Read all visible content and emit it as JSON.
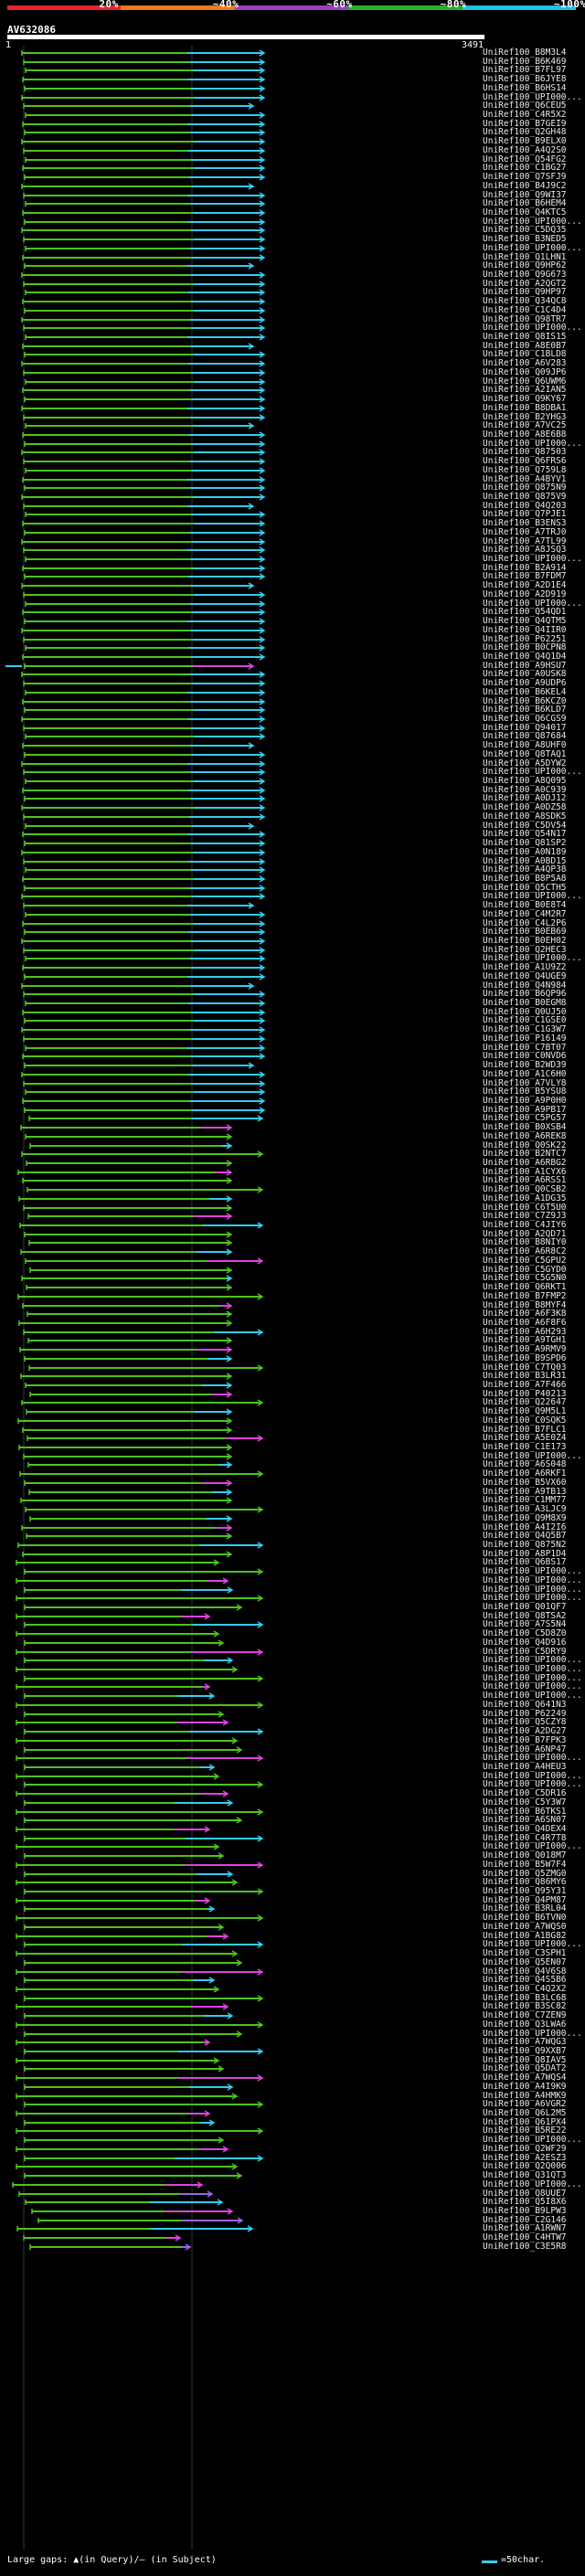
{
  "scale": {
    "ticks": [
      "20%",
      "~40%",
      "~60%",
      "~80%",
      "~100%"
    ],
    "colors": [
      "#e8242c",
      "#ee7a1e",
      "#9a3fbf",
      "#26b02c",
      "#1fc0e0"
    ]
  },
  "query": {
    "title": "AV632086",
    "start": "1",
    "end": "3491"
  },
  "colors": {
    "green": "#4ec21f",
    "cyan": "#33ccee",
    "magenta": "#dd44dd",
    "violet": "#9966dd",
    "gridline": "#2a3a3a"
  },
  "labels": [
    "UniRef100_B8M3L4",
    "UniRef100_B6K469",
    "UniRef100_B7FL97",
    "UniRef100_B6JYE8",
    "UniRef100_B6HS14",
    "UniRef100_UPI000...",
    "UniRef100_Q6CEU5",
    "UniRef100_C4R5X2",
    "UniRef100_B7GEI9",
    "UniRef100_Q2GH48",
    "UniRef100_B9ELX0",
    "UniRef100_A4Q2S0",
    "UniRef100_Q54FG2",
    "UniRef100_C1BG27",
    "UniRef100_Q7SFJ9",
    "UniRef100_B4J9C2",
    "UniRef100_Q9WI37",
    "UniRef100_B6HEM4",
    "UniRef100_Q4KTC5",
    "UniRef100_UPI000...",
    "UniRef100_C5DQ35",
    "UniRef100_B3NED5",
    "UniRef100_UPI000...",
    "UniRef100_Q1LHN1",
    "UniRef100_Q9HP62",
    "UniRef100_Q9G673",
    "UniRef100_A2QGT2",
    "UniRef100_Q9HP97",
    "UniRef100_Q34QC8",
    "UniRef100_C1C4D4",
    "UniRef100_Q98TR7",
    "UniRef100_UPI000...",
    "UniRef100_Q8IS15",
    "UniRef100_A8E0B7",
    "UniRef100_C1BLD8",
    "UniRef100_A6V283",
    "UniRef100_Q09JP6",
    "UniRef100_Q6UWM6",
    "UniRef100_A2IAN5",
    "UniRef100_Q9KY67",
    "UniRef100_B8DBA1",
    "UniRef100_B2YHG3",
    "UniRef100_A7VC25",
    "UniRef100_A8E6B8",
    "UniRef100_UPI000...",
    "UniRef100_Q87503",
    "UniRef100_Q6FRS6",
    "UniRef100_Q759L8",
    "UniRef100_A4BYV1",
    "UniRef100_Q875N9",
    "UniRef100_Q875V9",
    "UniRef100_Q4Q203",
    "UniRef100_Q7PJE1",
    "UniRef100_B3ENS3",
    "UniRef100_A7TRJ0",
    "UniRef100_A7TL99",
    "UniRef100_A8JSQ3",
    "UniRef100_UPI000...",
    "UniRef100_B2A914",
    "UniRef100_B7FDM7",
    "UniRef100_A2D1E4",
    "UniRef100_A2D919",
    "UniRef100_UPI000...",
    "UniRef100_Q54QD1",
    "UniRef100_Q4QTM5",
    "UniRef100_Q4IIR0",
    "UniRef100_P62251",
    "UniRef100_B0CPN8",
    "UniRef100_Q4Q1D4",
    "UniRef100_A9HSU7",
    "UniRef100_A0USK8",
    "UniRef100_A9UDP6",
    "UniRef100_B6KEL4",
    "UniRef100_B6KCZ0",
    "UniRef100_B6KLD7",
    "UniRef100_Q6CGS9",
    "UniRef100_Q94017",
    "UniRef100_Q87684",
    "UniRef100_A8UHF0",
    "UniRef100_Q8TAQ1",
    "UniRef100_A5DYW2",
    "UniRef100_UPI000...",
    "UniRef100_A8Q095",
    "UniRef100_A0C939",
    "UniRef100_A0DJ12",
    "UniRef100_A0DZ58",
    "UniRef100_A8SDK5",
    "UniRef100_C5DV54",
    "UniRef100_Q54N17",
    "UniRef100_Q81SP2",
    "UniRef100_A0N189",
    "UniRef100_A0BD15",
    "UniRef100_A4QP38",
    "UniRef100_B8P5A8",
    "UniRef100_Q5CTH5",
    "UniRef100_UPI000...",
    "UniRef100_B0E8T4",
    "UniRef100_C4M2R7",
    "UniRef100_C4L2P6",
    "UniRef100_B0EB69",
    "UniRef100_B0EH02",
    "UniRef100_Q2HEC3",
    "UniRef100_UPI000...",
    "UniRef100_A1U9Z2",
    "UniRef100_Q4UGE9",
    "UniRef100_Q4N984",
    "UniRef100_B6QP96",
    "UniRef100_B0EGM8",
    "UniRef100_Q0UJ50",
    "UniRef100_C1GSE0",
    "UniRef100_C1G3W7",
    "UniRef100_P16149",
    "UniRef100_C7BT07",
    "UniRef100_C0NVD6",
    "UniRef100_B2WD39",
    "UniRef100_A1C6H0",
    "UniRef100_A7VLY8",
    "UniRef100_B5YSU8",
    "UniRef100_A9P0H0",
    "UniRef100_A9PB17",
    "UniRef100_C5PG57",
    "UniRef100_B0XSB4",
    "UniRef100_A6REK8",
    "UniRef100_Q0SK22",
    "UniRef100_B2NTC7",
    "UniRef100_A6RBG2",
    "UniRef100_A1CYX6",
    "UniRef100_A6RSS1",
    "UniRef100_Q0CSB2",
    "UniRef100_A1DG35",
    "UniRef100_C6T5U0",
    "UniRef100_C7Z9J3",
    "UniRef100_C4JIY6",
    "UniRef100_A2QD71",
    "UniRef100_B8NIY0",
    "UniRef100_A6R8C2",
    "UniRef100_C5GPU2",
    "UniRef100_C5GYD0",
    "UniRef100_C5G5N0",
    "UniRef100_Q6RKT1",
    "UniRef100_B7FMP2",
    "UniRef100_B8MYF4",
    "UniRef100_A6F3K8",
    "UniRef100_A6F8F6",
    "UniRef100_A6H293",
    "UniRef100_A9TGH1",
    "UniRef100_A9RMV9",
    "UniRef100_B9SPD6",
    "UniRef100_C7TQ03",
    "UniRef100_B3LR31",
    "UniRef100_A7F466",
    "UniRef100_P40213",
    "UniRef100_Q22647",
    "UniRef100_Q9M5L1",
    "UniRef100_C0SQK5",
    "UniRef100_B7FLC1",
    "UniRef100_A5E0Z4",
    "UniRef100_C1E173",
    "UniRef100_UPI000...",
    "UniRef100_A6S048",
    "UniRef100_A6RKF1",
    "UniRef100_B5VX60",
    "UniRef100_A9TB13",
    "UniRef100_C1MM77",
    "UniRef100_A3LJC9",
    "UniRef100_Q9M8X9",
    "UniRef100_A4I2I6",
    "UniRef100_Q4Q5B7",
    "UniRef100_Q875N2",
    "UniRef100_A8P1D4",
    "UniRef100_Q6BS17",
    "UniRef100_UPI000...",
    "UniRef100_UPI000...",
    "UniRef100_UPI000...",
    "UniRef100_UPI000...",
    "UniRef100_Q01QF7",
    "UniRef100_Q8TSA2",
    "UniRef100_A7S5N4",
    "UniRef100_C5D8Z0",
    "UniRef100_Q4D916",
    "UniRef100_C5DRY9",
    "UniRef100_UPI000...",
    "UniRef100_UPI000...",
    "UniRef100_UPI000...",
    "UniRef100_UPI000...",
    "UniRef100_UPI000...",
    "UniRef100_Q641N3",
    "UniRef100_P62249",
    "UniRef100_Q5CZY8",
    "UniRef100_A2DG27",
    "UniRef100_B7FPK3",
    "UniRef100_A6NP47",
    "UniRef100_UPI000...",
    "UniRef100_A4HEU3",
    "UniRef100_UPI000...",
    "UniRef100_UPI000...",
    "UniRef100_C5DR16",
    "UniRef100_C5Y3W7",
    "UniRef100_B6TKS1",
    "UniRef100_A6SN07",
    "UniRef100_Q4DEX4",
    "UniRef100_C4R7T8",
    "UniRef100_UPI000...",
    "UniRef100_Q018M7",
    "UniRef100_B5W7F4",
    "UniRef100_Q5ZMG0",
    "UniRef100_Q86MY6",
    "UniRef100_Q95Y31",
    "UniRef100_Q4PM87",
    "UniRef100_B3RL04",
    "UniRef100_B6TVN0",
    "UniRef100_A7WQS0",
    "UniRef100_A1BG82",
    "UniRef100_UPI000...",
    "UniRef100_C3SPH1",
    "UniRef100_Q5EN07",
    "UniRef100_Q4V6S8",
    "UniRef100_Q4S5B6",
    "UniRef100_C4Q2X2",
    "UniRef100_B3LC68",
    "UniRef100_B3SC82",
    "UniRef100_C7ZEN9",
    "UniRef100_Q3LWA6",
    "UniRef100_UPI000...",
    "UniRef100_A7WQG3",
    "UniRef100_Q9XXB7",
    "UniRef100_Q8IAV5",
    "UniRef100_Q5DAT2",
    "UniRef100_A7WQS4",
    "UniRef100_A4I9K9",
    "UniRef100_A4HMK9",
    "UniRef100_A6VGR2",
    "UniRef100_Q6L2M5",
    "UniRef100_Q61PX4",
    "UniRef100_B5RE22",
    "UniRef100_UPI000...",
    "UniRef100_Q2WF29",
    "UniRef100_A2ESZ3",
    "UniRef100_Q2Q006",
    "UniRef100_Q31QT3",
    "UniRef100_UPI000...",
    "UniRef100_Q8UUE7",
    "UniRef100_Q5I8X6",
    "UniRef100_B9LPW3",
    "UniRef100_C2G146",
    "UniRef100_A1RWN7",
    "UniRef100_C4HTW7",
    "UniRef100_C3E5R8"
  ],
  "legend": {
    "left": "Large gaps: ▲(in Query)/– (in Subject)",
    "right": "=50char."
  }
}
